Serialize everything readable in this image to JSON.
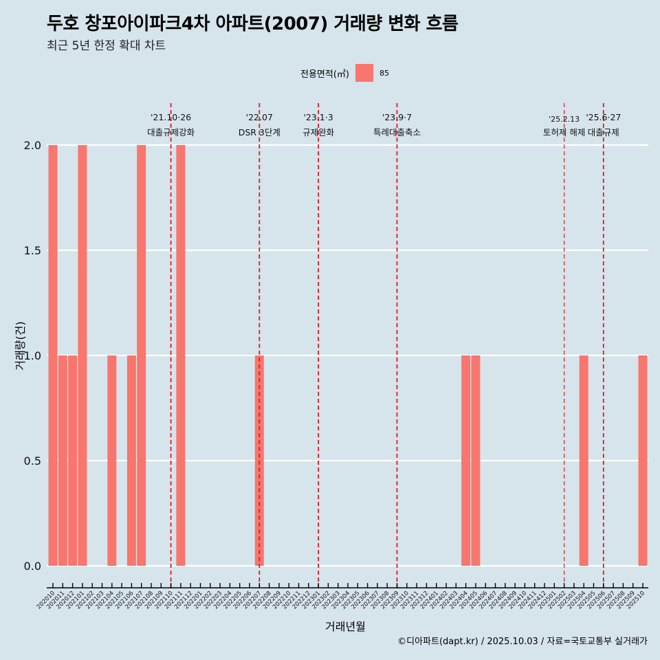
{
  "title": "두호 창포아이파크4차 아파트(2007) 거래량 변화 흐름",
  "subtitle": "최근 5년 한정 확대 차트",
  "caption": "©디아파트(dapt.kr) / 2025.10.03 / 자료=국토교통부 실거래가",
  "colors": {
    "background": "#D6E4EC",
    "bar": "#F8766D",
    "grid": "#FFFFFF",
    "event_line": "#E41A1C",
    "axis": "#000000"
  },
  "chart_data": {
    "type": "bar",
    "title": "두호 창포아이파크4차 아파트(2007) 거래량 변화 흐름",
    "subtitle": "최근 5년 한정 확대 차트",
    "xlabel": "거래년월",
    "ylabel": "거래량(건)",
    "ylim": [
      0,
      2
    ],
    "yticks": [
      "0.0",
      "0.5",
      "1.0",
      "1.5",
      "2.0"
    ],
    "ytick_values": [
      0,
      0.5,
      1.0,
      1.5,
      2.0
    ],
    "grid": true,
    "legend": {
      "title": "전용면적(㎡)",
      "entries": [
        "85"
      ],
      "placement": "top"
    },
    "categories": [
      "202010",
      "202011",
      "202012",
      "202101",
      "202102",
      "202103",
      "202104",
      "202105",
      "202106",
      "202107",
      "202108",
      "202109",
      "202110",
      "202111",
      "202112",
      "202201",
      "202202",
      "202203",
      "202204",
      "202205",
      "202206",
      "202207",
      "202208",
      "202209",
      "202210",
      "202211",
      "202212",
      "202301",
      "202302",
      "202303",
      "202304",
      "202305",
      "202306",
      "202307",
      "202308",
      "202309",
      "202310",
      "202311",
      "202312",
      "202401",
      "202402",
      "202403",
      "202404",
      "202405",
      "202406",
      "202407",
      "202408",
      "202409",
      "202410",
      "202411",
      "202412",
      "202501",
      "202502",
      "202503",
      "202504",
      "202505",
      "202506",
      "202507",
      "202508",
      "202509",
      "202510"
    ],
    "series": [
      {
        "name": "85",
        "values": [
          2,
          1,
          1,
          2,
          0,
          0,
          1,
          0,
          1,
          2,
          0,
          0,
          0,
          2,
          0,
          0,
          0,
          0,
          0,
          0,
          0,
          1,
          0,
          0,
          0,
          0,
          0,
          0,
          0,
          0,
          0,
          0,
          0,
          0,
          0,
          0,
          0,
          0,
          0,
          0,
          0,
          0,
          1,
          1,
          0,
          0,
          0,
          0,
          0,
          0,
          0,
          0,
          0,
          0,
          1,
          0,
          0,
          0,
          0,
          0,
          1
        ]
      }
    ],
    "annotations": [
      {
        "month": "202110",
        "date": "'21.10·26",
        "label": "대출규제강화",
        "style": "dashed"
      },
      {
        "month": "202207",
        "date": "'22.07",
        "label": "DSR 3단계",
        "style": "dashed"
      },
      {
        "month": "202301",
        "date": "'23.1·3",
        "label": "규제완화",
        "style": "dashed"
      },
      {
        "month": "202309",
        "date": "'23.9·7",
        "label": "특례대출축소",
        "style": "dashed"
      },
      {
        "month": "202502",
        "date": "'25.2.13",
        "label": "토허제 해제",
        "style": "dashed-thin"
      },
      {
        "month": "202506",
        "date": "'25.6·27",
        "label": "대출규제",
        "style": "dashed"
      }
    ]
  }
}
